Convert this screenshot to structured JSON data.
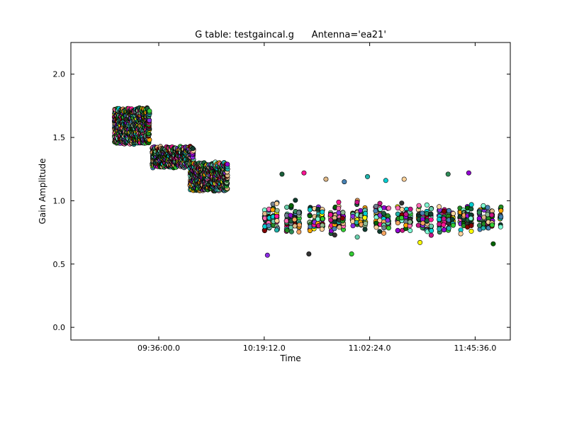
{
  "chart_data": {
    "type": "scatter",
    "title": "G table: testgaincal.g      Antenna='ea21'",
    "xlabel": "Time",
    "ylabel": "Gain Amplitude",
    "x_unit": "time of day",
    "xlim": [
      "09:00:00",
      "12:00:00"
    ],
    "ylim": [
      -0.1,
      2.25
    ],
    "xticks": [
      {
        "t": "09:36:00",
        "label": "09:36:00.0"
      },
      {
        "t": "10:19:12",
        "label": "10:19:12.0"
      },
      {
        "t": "11:02:24",
        "label": "11:02:24.0"
      },
      {
        "t": "11:45:36",
        "label": "11:45:36.0"
      }
    ],
    "yticks": [
      {
        "v": 0.0,
        "label": "0.0"
      },
      {
        "v": 0.5,
        "label": "0.5"
      },
      {
        "v": 1.0,
        "label": "1.0"
      },
      {
        "v": 1.5,
        "label": "1.5"
      },
      {
        "v": 2.0,
        "label": "2.0"
      }
    ],
    "grid": false,
    "marker": "circle",
    "colors": [
      "#1a5f3a",
      "#0f3d2e",
      "#2e8b57",
      "#20b2aa",
      "#66cdaa",
      "#7fffd4",
      "#00ced1",
      "#ff1493",
      "#c71585",
      "#9400d3",
      "#8a2be2",
      "#ffa500",
      "#f4a460",
      "#ffd39b",
      "#deb887",
      "#228b22",
      "#006400",
      "#333333",
      "#708090",
      "#8fbc8f",
      "#ffff00",
      "#4682b4",
      "#ff69b4",
      "#800000",
      "#32cd32"
    ],
    "clusters": [
      {
        "t_start": "09:18:00",
        "t_end": "09:32:00",
        "y_mean": 1.59,
        "y_spread": 0.13,
        "n_cols": 30,
        "per_col": 26,
        "style": "dense"
      },
      {
        "t_start": "09:33:30",
        "t_end": "09:50:00",
        "y_mean": 1.345,
        "y_spread": 0.07,
        "n_cols": 32,
        "per_col": 20,
        "style": "dense"
      },
      {
        "t_start": "09:49:00",
        "t_end": "10:04:00",
        "y_mean": 1.19,
        "y_spread": 0.1,
        "n_cols": 30,
        "per_col": 22,
        "style": "dense"
      },
      {
        "t_start": "10:19:30",
        "t_end": "10:24:30",
        "y_mean": 0.86,
        "y_spread": 0.1,
        "n_cols": 4,
        "per_col": 14,
        "style": "sparse"
      },
      {
        "t_start": "10:28:30",
        "t_end": "10:33:30",
        "y_mean": 0.86,
        "y_spread": 0.1,
        "n_cols": 4,
        "per_col": 14,
        "style": "sparse"
      },
      {
        "t_start": "10:38:00",
        "t_end": "10:43:00",
        "y_mean": 0.86,
        "y_spread": 0.1,
        "n_cols": 4,
        "per_col": 14,
        "style": "sparse"
      },
      {
        "t_start": "10:46:30",
        "t_end": "10:51:30",
        "y_mean": 0.86,
        "y_spread": 0.1,
        "n_cols": 4,
        "per_col": 14,
        "style": "sparse"
      },
      {
        "t_start": "10:55:30",
        "t_end": "11:00:30",
        "y_mean": 0.86,
        "y_spread": 0.1,
        "n_cols": 4,
        "per_col": 14,
        "style": "sparse"
      },
      {
        "t_start": "11:05:00",
        "t_end": "11:10:00",
        "y_mean": 0.86,
        "y_spread": 0.1,
        "n_cols": 4,
        "per_col": 14,
        "style": "sparse"
      },
      {
        "t_start": "11:14:00",
        "t_end": "11:19:00",
        "y_mean": 0.86,
        "y_spread": 0.1,
        "n_cols": 4,
        "per_col": 14,
        "style": "sparse"
      },
      {
        "t_start": "11:22:30",
        "t_end": "11:27:30",
        "y_mean": 0.86,
        "y_spread": 0.1,
        "n_cols": 4,
        "per_col": 14,
        "style": "sparse"
      },
      {
        "t_start": "11:31:00",
        "t_end": "11:36:30",
        "y_mean": 0.86,
        "y_spread": 0.1,
        "n_cols": 4,
        "per_col": 14,
        "style": "sparse"
      },
      {
        "t_start": "11:39:30",
        "t_end": "11:44:00",
        "y_mean": 0.86,
        "y_spread": 0.1,
        "n_cols": 4,
        "per_col": 14,
        "style": "sparse"
      },
      {
        "t_start": "11:47:30",
        "t_end": "11:52:30",
        "y_mean": 0.86,
        "y_spread": 0.1,
        "n_cols": 4,
        "per_col": 14,
        "style": "sparse"
      },
      {
        "t_start": "11:56:00",
        "t_end": "11:56:00",
        "y_mean": 0.86,
        "y_spread": 0.1,
        "n_cols": 1,
        "per_col": 14,
        "style": "sparse"
      }
    ],
    "outliers": [
      {
        "t": "10:26:30",
        "y": 1.21
      },
      {
        "t": "10:35:30",
        "y": 1.22
      },
      {
        "t": "10:44:30",
        "y": 1.17
      },
      {
        "t": "10:52:00",
        "y": 1.15
      },
      {
        "t": "11:01:30",
        "y": 1.19
      },
      {
        "t": "10:20:30",
        "y": 0.57
      },
      {
        "t": "10:37:30",
        "y": 0.58
      },
      {
        "t": "10:55:00",
        "y": 0.58
      },
      {
        "t": "11:09:00",
        "y": 1.16
      },
      {
        "t": "11:16:30",
        "y": 1.17
      },
      {
        "t": "11:23:00",
        "y": 0.67
      },
      {
        "t": "11:34:30",
        "y": 1.21
      },
      {
        "t": "11:43:00",
        "y": 1.22
      },
      {
        "t": "11:53:00",
        "y": 0.66
      }
    ]
  }
}
